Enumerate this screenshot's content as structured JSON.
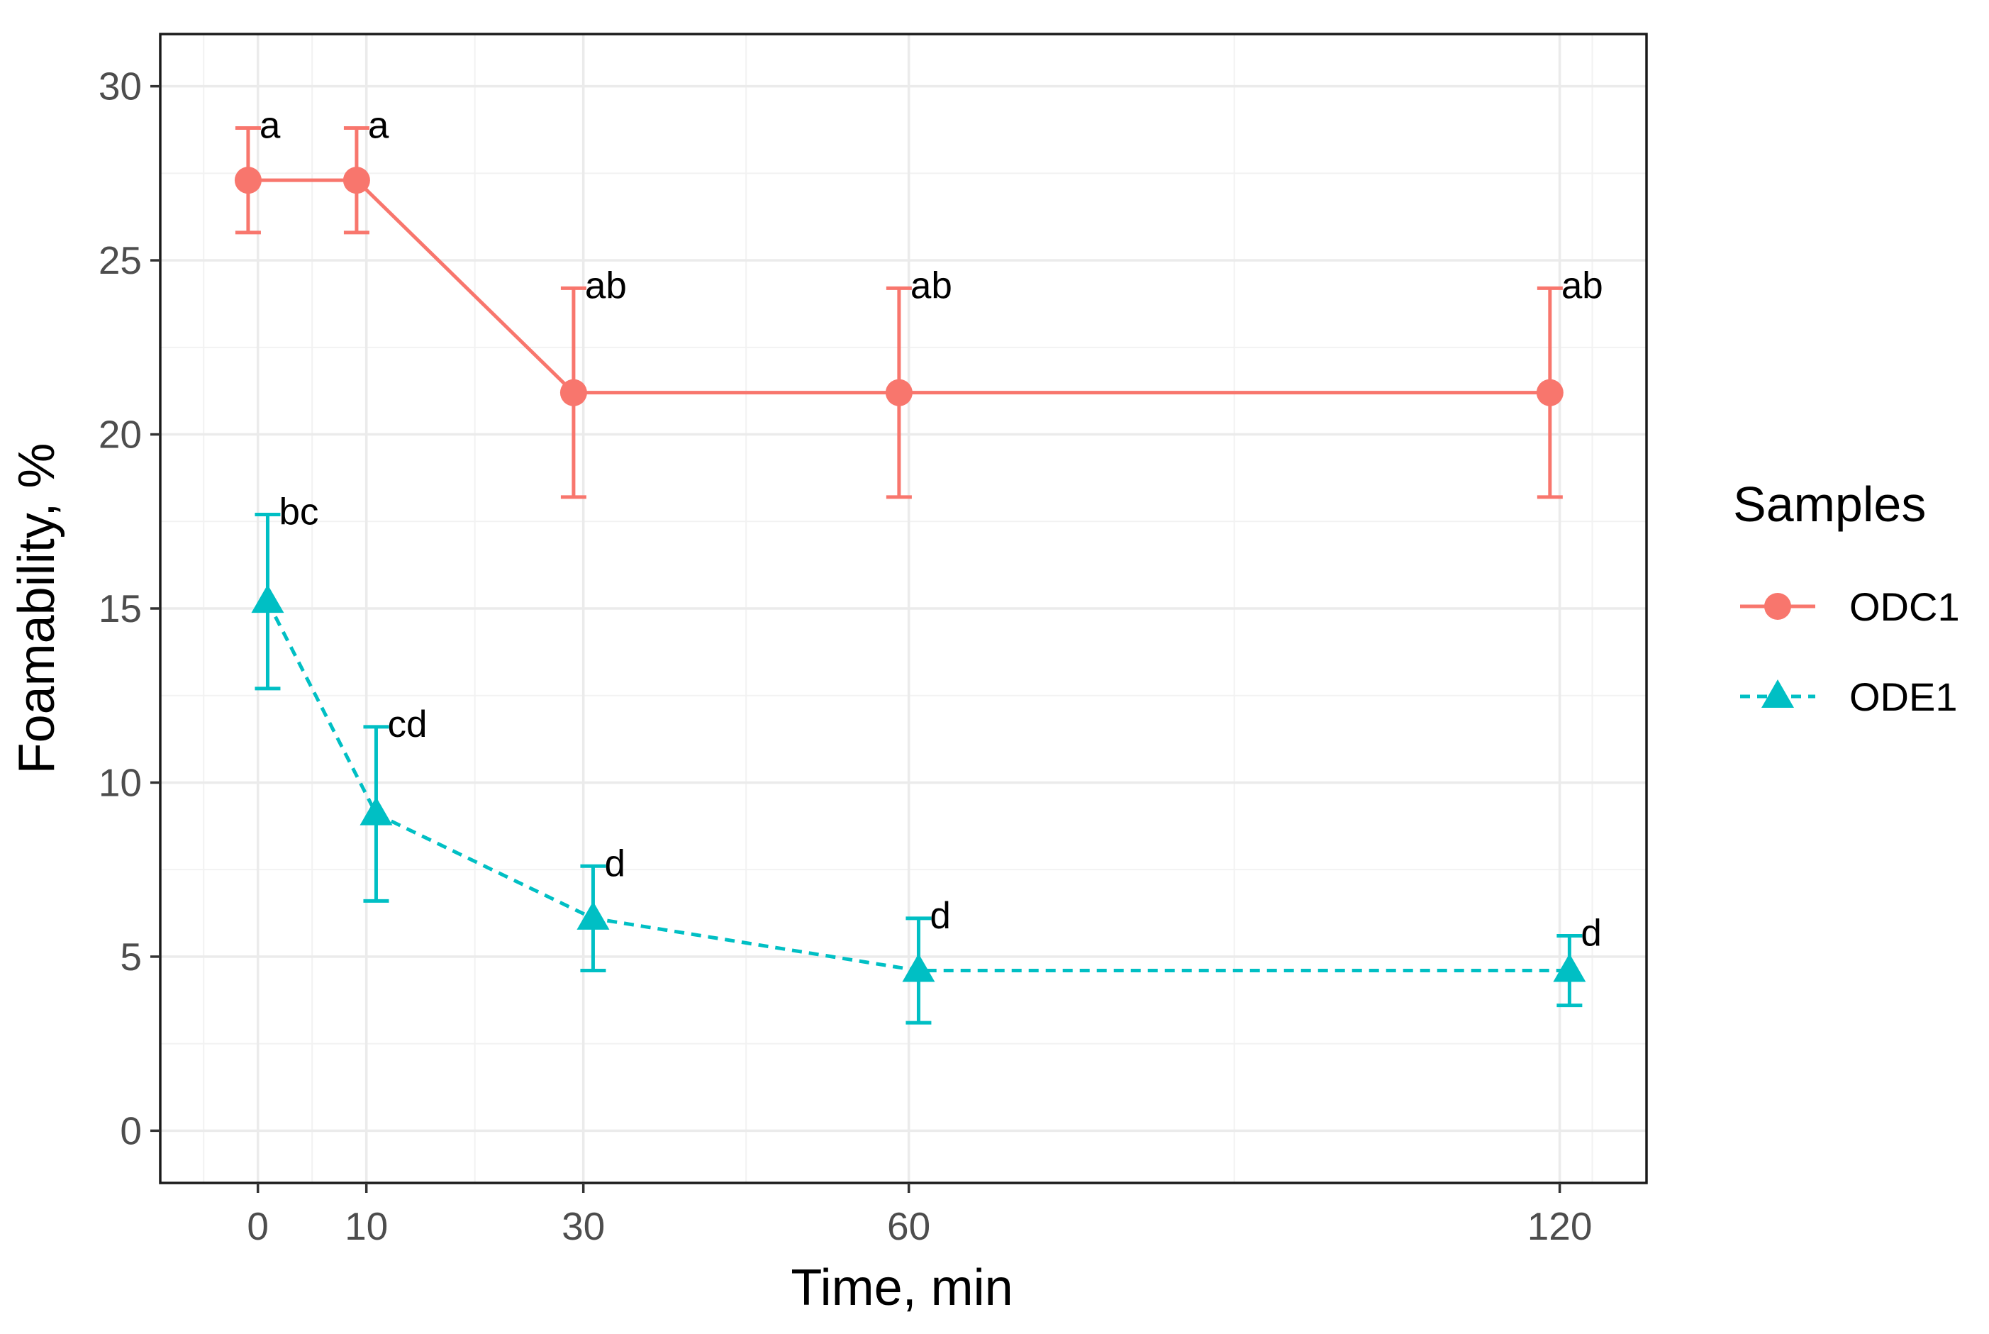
{
  "chart_data": {
    "type": "line",
    "title": "",
    "xlabel": "Time, min",
    "ylabel": "Foamability, %",
    "x_ticks": [
      0,
      10,
      30,
      60,
      120
    ],
    "x_tick_labels": [
      "0",
      "10",
      "30",
      "60",
      "120"
    ],
    "y_ticks": [
      0,
      5,
      10,
      15,
      20,
      25,
      30
    ],
    "y_tick_labels": [
      "0",
      "5",
      "10",
      "15",
      "20",
      "25",
      "30"
    ],
    "xlim": [
      -9,
      128
    ],
    "ylim": [
      -1.5,
      31.5
    ],
    "grid": true,
    "legend": {
      "title": "Samples",
      "position": "right"
    },
    "series": [
      {
        "name": "ODC1",
        "color": "#F8766D",
        "marker": "circle",
        "line_style": "solid",
        "x": [
          0,
          10,
          30,
          60,
          120
        ],
        "y": [
          27.3,
          27.3,
          21.2,
          21.2,
          21.2
        ],
        "error": [
          1.5,
          1.5,
          3.0,
          3.0,
          3.0
        ],
        "labels": [
          "a",
          "a",
          "ab",
          "ab",
          "ab"
        ]
      },
      {
        "name": "ODE1",
        "color": "#00BFC4",
        "marker": "triangle",
        "line_style": "dashed",
        "x": [
          0,
          10,
          30,
          60,
          120
        ],
        "y": [
          15.2,
          9.1,
          6.1,
          4.6,
          4.6
        ],
        "error": [
          2.5,
          2.5,
          1.5,
          1.5,
          1.0
        ],
        "labels": [
          "bc",
          "cd",
          "d",
          "d",
          "d"
        ]
      }
    ]
  }
}
